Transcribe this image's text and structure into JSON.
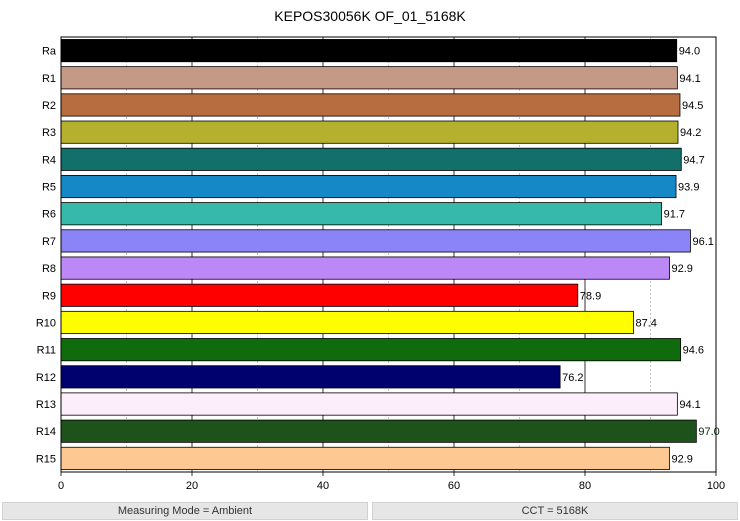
{
  "chart_data": {
    "type": "bar",
    "orientation": "horizontal",
    "title": "KEPOS30056K OF_01_5168K",
    "xlabel": "",
    "ylabel": "",
    "xlim": [
      0,
      100
    ],
    "x_ticks": [
      0,
      20,
      40,
      60,
      80,
      100
    ],
    "grid": "vertical gridlines (solid at 20s, dashed at 10s)",
    "categories": [
      "Ra",
      "R1",
      "R2",
      "R3",
      "R4",
      "R5",
      "R6",
      "R7",
      "R8",
      "R9",
      "R10",
      "R11",
      "R12",
      "R13",
      "R14",
      "R15"
    ],
    "values": [
      94.0,
      94.1,
      94.5,
      94.2,
      94.7,
      93.9,
      91.7,
      96.1,
      92.9,
      78.9,
      87.4,
      94.6,
      76.2,
      94.1,
      97.0,
      92.9
    ],
    "value_labels": [
      "94.0",
      "94.1",
      "94.5",
      "94.2",
      "94.7",
      "93.9",
      "91.7",
      "96.1",
      "92.9",
      "78.9",
      "87.4",
      "94.6",
      "76.2",
      "94.1",
      "97.0",
      "92.9"
    ],
    "colors": [
      "#000000",
      "#c49a87",
      "#b86d40",
      "#b5b02e",
      "#11706a",
      "#1588c8",
      "#36b8ab",
      "#8b84f7",
      "#bb88f6",
      "#ff0000",
      "#ffff00",
      "#0f6b0c",
      "#00006e",
      "#fdeefb",
      "#1d521b",
      "#fdc891"
    ]
  },
  "status_bar": {
    "measuring_mode": "Measuring Mode = Ambient",
    "cct": "CCT = 5168K"
  }
}
